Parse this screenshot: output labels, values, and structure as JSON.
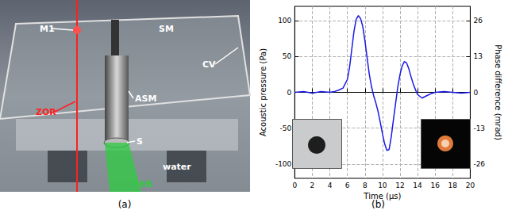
{
  "panel_a": {
    "caption": "(a)",
    "labels": [
      "M1",
      "SM",
      "CV",
      "ZOR",
      "ASM",
      "S",
      "water",
      "EB"
    ]
  },
  "chart_data": {
    "type": "line",
    "subtitle": "(b)",
    "x_label": "Time (µs)",
    "y_label": "Acoustic pressure (Pa)",
    "y2_label": "Phase difference (mrad)",
    "x": [
      0,
      1,
      2,
      3,
      4,
      4.5,
      5,
      5.5,
      6,
      6.25,
      6.5,
      6.75,
      7,
      7.25,
      7.5,
      7.75,
      8,
      8.25,
      8.5,
      8.75,
      9,
      9.25,
      9.5,
      9.75,
      10,
      10.25,
      10.5,
      10.75,
      11,
      11.25,
      11.5,
      11.75,
      12,
      12.25,
      12.5,
      12.75,
      13,
      13.25,
      13.5,
      13.75,
      14,
      14.5,
      15,
      15.5,
      16,
      17,
      18,
      19,
      20
    ],
    "series": [
      {
        "name": "Acoustic pressure",
        "color": "#1a1ae6",
        "values": [
          0,
          1,
          -1,
          1,
          0,
          1,
          3,
          6,
          18,
          35,
          60,
          85,
          102,
          107,
          103,
          92,
          72,
          48,
          25,
          8,
          -5,
          -15,
          -27,
          -42,
          -58,
          -72,
          -81,
          -80,
          -62,
          -38,
          -15,
          8,
          25,
          37,
          43,
          41,
          33,
          22,
          12,
          4,
          -3,
          -8,
          -5,
          -2,
          0,
          1,
          0,
          -1,
          0
        ]
      }
    ],
    "xlim": [
      0,
      20
    ],
    "xticks": [
      0,
      2,
      4,
      6,
      8,
      10,
      12,
      14,
      16,
      18,
      20
    ],
    "ylim": [
      -120,
      120
    ],
    "yticks": [
      -100,
      -50,
      0,
      50,
      100
    ],
    "y2lim": [
      -31.2,
      31.2
    ],
    "y2ticks": [
      -26,
      -13,
      0,
      13,
      26
    ],
    "grid": true
  }
}
